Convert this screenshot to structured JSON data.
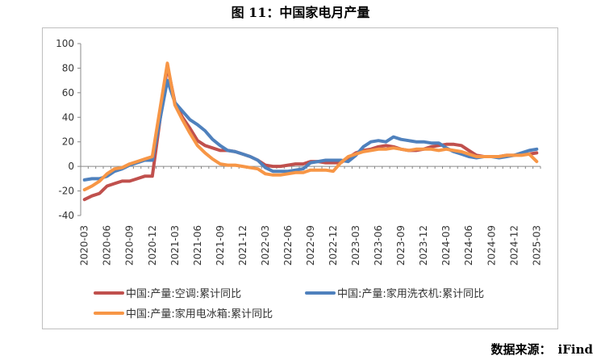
{
  "title": "图 11：中国家电月产量",
  "source": {
    "label": "数据来源：",
    "value": "iFind"
  },
  "chart_data": {
    "type": "line",
    "title": "",
    "xlabel": "",
    "ylabel": "",
    "ylim": [
      -40,
      100
    ],
    "yticks": [
      -40,
      -20,
      0,
      20,
      40,
      60,
      80,
      100
    ],
    "grid": false,
    "legend_position": "bottom",
    "x": [
      "2020-03",
      "2020-04",
      "2020-05",
      "2020-06",
      "2020-07",
      "2020-08",
      "2020-09",
      "2020-10",
      "2020-11",
      "2020-12",
      "2021-01",
      "2021-02",
      "2021-03",
      "2021-04",
      "2021-05",
      "2021-06",
      "2021-07",
      "2021-08",
      "2021-09",
      "2021-10",
      "2021-11",
      "2021-12",
      "2022-01",
      "2022-02",
      "2022-03",
      "2022-04",
      "2022-05",
      "2022-06",
      "2022-07",
      "2022-08",
      "2022-09",
      "2022-10",
      "2022-11",
      "2022-12",
      "2023-01",
      "2023-02",
      "2023-03",
      "2023-04",
      "2023-05",
      "2023-06",
      "2023-07",
      "2023-08",
      "2023-09",
      "2023-10",
      "2023-11",
      "2023-12",
      "2024-01",
      "2024-02",
      "2024-03",
      "2024-04",
      "2024-05",
      "2024-06",
      "2024-07",
      "2024-08",
      "2024-09",
      "2024-10",
      "2024-11",
      "2024-12",
      "2025-01",
      "2025-02",
      "2025-03"
    ],
    "xtick_labels": [
      "2020-03",
      "2020-06",
      "2020-09",
      "2020-12",
      "2021-03",
      "2021-06",
      "2021-09",
      "2021-12",
      "2022-03",
      "2022-06",
      "2022-09",
      "2022-12",
      "2023-03",
      "2023-06",
      "2023-09",
      "2023-12",
      "2024-03",
      "2024-06",
      "2024-09",
      "2024-12",
      "2025-03"
    ],
    "series": [
      {
        "name": "中国:产量:空调:累计同比",
        "color": "#C0504D",
        "values": [
          -27,
          -24,
          -22,
          -16,
          -14,
          -12,
          -12,
          -10,
          -8,
          -8,
          null,
          82,
          52,
          40,
          31,
          21,
          17,
          15,
          13,
          13,
          12,
          10,
          8,
          5,
          1,
          0,
          0,
          1,
          2,
          2,
          4,
          4,
          3,
          3,
          3,
          7,
          11,
          13,
          14,
          16,
          17,
          16,
          14,
          13,
          13,
          14,
          16,
          17,
          18,
          18,
          17,
          13,
          9,
          8,
          8,
          8,
          9,
          9,
          10,
          10,
          11
        ]
      },
      {
        "name": "中国:产量:家用洗衣机:累计同比",
        "color": "#4F81BD",
        "values": [
          -11,
          -10,
          -10,
          -8,
          -4,
          -2,
          1,
          3,
          5,
          5,
          null,
          70,
          52,
          45,
          38,
          34,
          29,
          22,
          17,
          13,
          12,
          10,
          8,
          5,
          -1,
          -4,
          -4,
          -4,
          -3,
          -2,
          3,
          4,
          5,
          5,
          5,
          4,
          9,
          16,
          20,
          21,
          20,
          24,
          22,
          21,
          20,
          20,
          19,
          19,
          15,
          12,
          10,
          8,
          7,
          8,
          8,
          7,
          8,
          9,
          11,
          13,
          14
        ]
      },
      {
        "name": "中国:产量:家用电冰箱:累计同比",
        "color": "#F79646",
        "values": [
          -19,
          -16,
          -12,
          -6,
          -2,
          -1,
          2,
          4,
          6,
          8,
          null,
          84,
          50,
          38,
          27,
          17,
          11,
          6,
          2,
          1,
          1,
          0,
          -1,
          -2,
          -6,
          -7,
          -7,
          -6,
          -5,
          -5,
          -3,
          -3,
          -3,
          -4,
          3,
          8,
          10,
          12,
          13,
          14,
          14,
          15,
          14,
          13,
          14,
          14,
          14,
          13,
          14,
          13,
          12,
          10,
          8,
          8,
          8,
          8,
          9,
          9,
          9,
          10,
          4
        ]
      }
    ]
  }
}
